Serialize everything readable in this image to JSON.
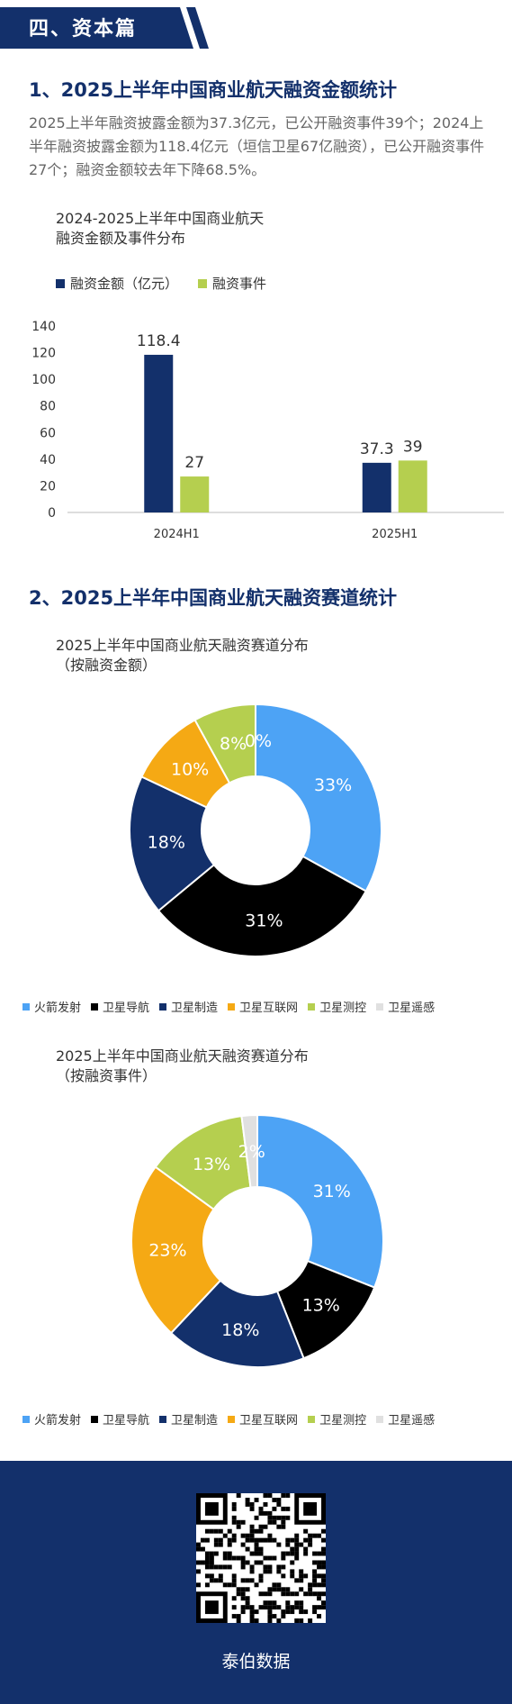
{
  "section": {
    "banner": "四、资本篇"
  },
  "part1": {
    "title": "1、2025上半年中国商业航天融资金额统计",
    "intro": "2025上半年融资披露金额为37.3亿元，已公开融资事件39个；2024上半年融资披露金额为118.4亿元（垣信卫星67亿融资），已公开融资事件27个；融资金额较去年下降68.5%。"
  },
  "chart1": {
    "title_line1": "2024-2025上半年中国商业航天",
    "title_line2": "融资金额及事件分布",
    "legend": [
      "融资金额（亿元）",
      "融资事件"
    ],
    "colors": [
      "#13306b",
      "#b5cf4f"
    ]
  },
  "part2": {
    "title": "2、2025上半年中国商业航天融资赛道统计"
  },
  "chart2": {
    "title_line1": "2025上半年中国商业航天融资赛道分布",
    "title_line2": "（按融资金额）"
  },
  "chart3": {
    "title_line1": "2025上半年中国商业航天融资赛道分布",
    "title_line2": "（按融资事件）"
  },
  "pie_legend": [
    "火箭发射",
    "卫星导航",
    "卫星制造",
    "卫星互联网",
    "卫星测控",
    "卫星遥感"
  ],
  "pie_colors": [
    "#4da3f5",
    "#000000",
    "#13306b",
    "#f5a914",
    "#b5cf4f",
    "#e0e0e0"
  ],
  "footer": {
    "label": "泰伯数据",
    "qr_icon": "qr-code-icon"
  },
  "chart_data": [
    {
      "type": "bar",
      "title": "2024-2025上半年中国商业航天融资金额及事件分布",
      "categories": [
        "2024H1",
        "2025H1"
      ],
      "series": [
        {
          "name": "融资金额（亿元）",
          "values": [
            118.4,
            37.3
          ]
        },
        {
          "name": "融资事件",
          "values": [
            27,
            39
          ]
        }
      ],
      "ylim": [
        0,
        140
      ],
      "yticks": [
        0,
        20,
        40,
        60,
        80,
        100,
        120,
        140
      ],
      "legend": "top-left",
      "grid": false
    },
    {
      "type": "pie",
      "title": "2025上半年中国商业航天融资赛道分布（按融资金额）",
      "labels": [
        "火箭发射",
        "卫星导航",
        "卫星制造",
        "卫星互联网",
        "卫星测控",
        "卫星遥感"
      ],
      "values": [
        33,
        31,
        18,
        10,
        8,
        0
      ],
      "value_labels": [
        "33%",
        "31%",
        "18%",
        "10%",
        "8%",
        "0%"
      ],
      "legend": "bottom"
    },
    {
      "type": "pie",
      "title": "2025上半年中国商业航天融资赛道分布（按融资事件）",
      "labels": [
        "火箭发射",
        "卫星导航",
        "卫星制造",
        "卫星互联网",
        "卫星测控",
        "卫星遥感"
      ],
      "values": [
        31,
        13,
        18,
        23,
        13,
        2
      ],
      "value_labels": [
        "31%",
        "13%",
        "18%",
        "23%",
        "13%",
        "2%"
      ],
      "legend": "bottom"
    }
  ]
}
